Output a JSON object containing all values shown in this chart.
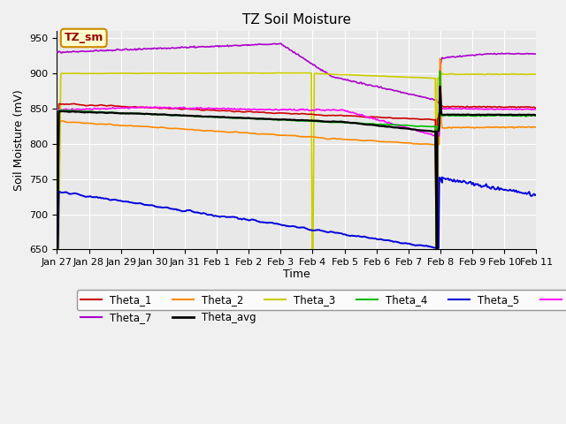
{
  "title": "TZ Soil Moisture",
  "xlabel": "Time",
  "ylabel": "Soil Moisture (mV)",
  "ylim": [
    650,
    960
  ],
  "yticks": [
    650,
    700,
    750,
    800,
    850,
    900,
    950
  ],
  "plot_bg_color": "#e8e8e8",
  "fig_bg_color": "#f0f0f0",
  "legend_label": "TZ_sm",
  "legend_box_color": "#ffffcc",
  "legend_box_edge": "#cc8800",
  "series_colors": {
    "Theta_1": "#cc0000",
    "Theta_2": "#ff8800",
    "Theta_3": "#cccc00",
    "Theta_4": "#00bb00",
    "Theta_5": "#0000dd",
    "Theta_6": "#ff00ff",
    "Theta_7": "#aa00cc",
    "Theta_avg": "#000000"
  },
  "x_labels": [
    "Jan 27",
    "Jan 28",
    "Jan 29",
    "Jan 30",
    "Jan 31",
    "Feb 1",
    "Feb 2",
    "Feb 3",
    "Feb 4",
    "Feb 5",
    "Feb 6",
    "Feb 7",
    "Feb 8",
    "Feb 9",
    "Feb 10",
    "Feb 11"
  ],
  "figsize": [
    6.4,
    4.8
  ],
  "dpi": 100
}
